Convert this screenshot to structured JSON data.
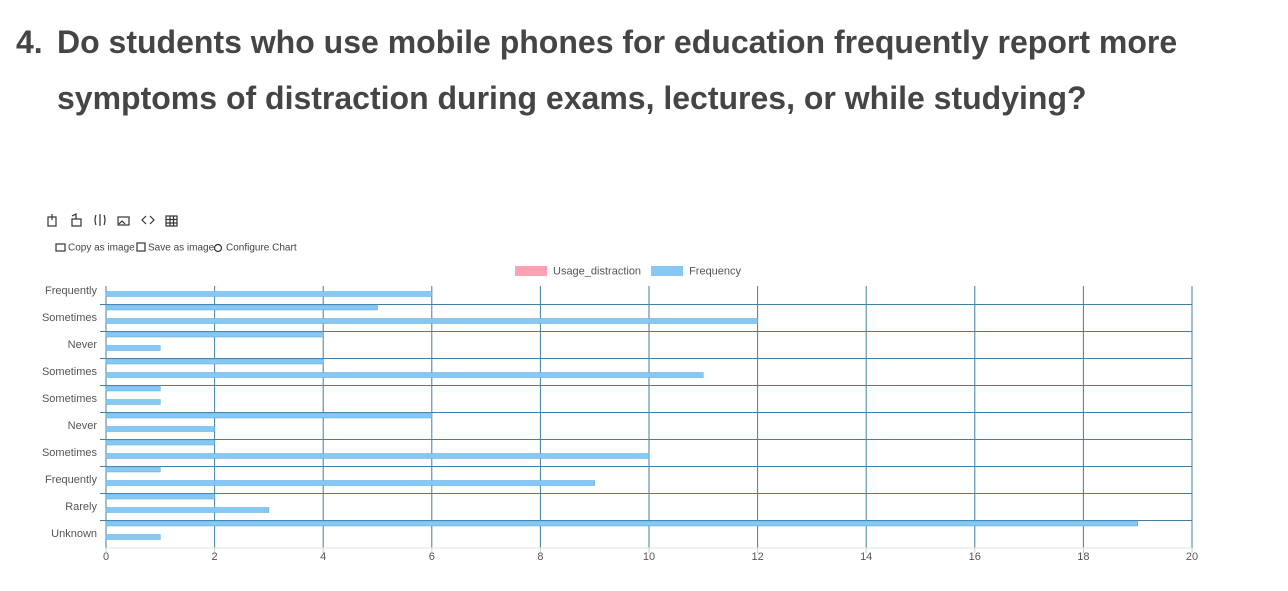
{
  "heading": {
    "number": "4.",
    "text": "Do students who use mobile phones for education frequently report more symptoms of distraction during exams, lectures, or while studying?"
  },
  "toolbar": {
    "buttons": [
      "Copy as image",
      "Save as image",
      "Configure Chart"
    ]
  },
  "chart_data": {
    "type": "hbar",
    "categories": [
      "Frequently",
      null,
      "Sometimes",
      null,
      "Never",
      null,
      "Sometimes",
      null,
      "Sometimes",
      null,
      "Never",
      null,
      "Sometimes",
      null,
      "Frequently",
      null,
      "Rarely",
      null,
      "Unknown"
    ],
    "series": [
      {
        "name": "Usage_distraction",
        "color": "#ffa1b5",
        "values": [
          null,
          null,
          null,
          null,
          null,
          null,
          null,
          null,
          null,
          null,
          null,
          null,
          null,
          null,
          null,
          null,
          null,
          null,
          null
        ]
      },
      {
        "name": "Frequency",
        "color": "#86c7f3",
        "values": [
          6,
          5,
          12,
          4,
          1,
          4,
          11,
          1,
          1,
          6,
          2,
          2,
          10,
          1,
          9,
          2,
          3,
          19,
          1
        ]
      }
    ],
    "xlim": [
      0,
      20
    ],
    "xticks": [
      0,
      2,
      4,
      6,
      8,
      10,
      12,
      14,
      16,
      18,
      20
    ],
    "grid": true,
    "legend": "top"
  }
}
